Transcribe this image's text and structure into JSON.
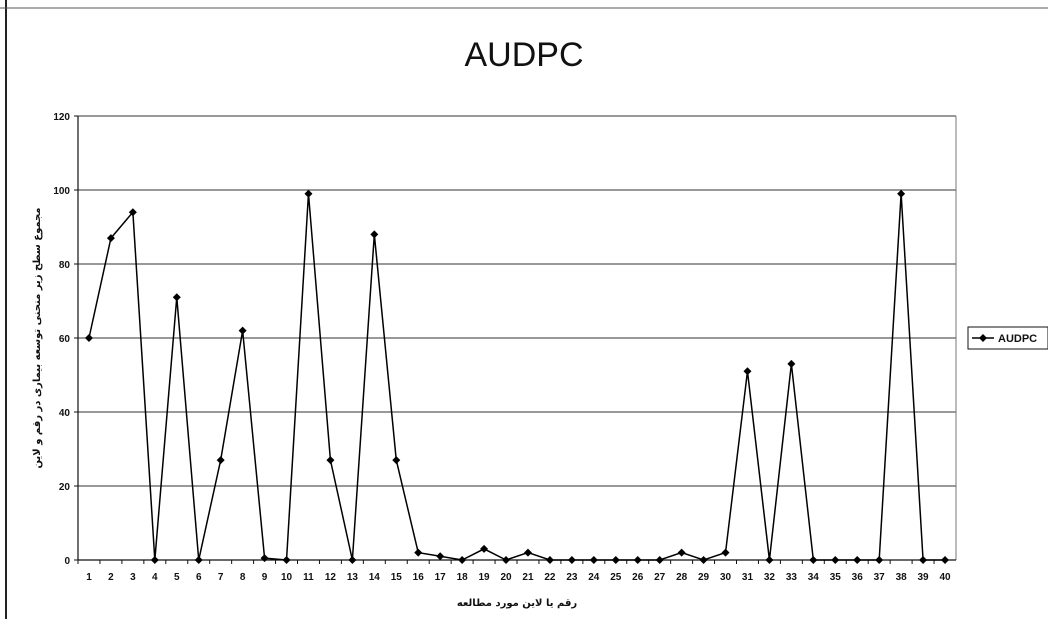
{
  "chart_data": {
    "type": "line",
    "title": "AUDPC",
    "xlabel": "رقم یا لاین مورد مطالعه",
    "ylabel": "مجموع سطح زیر منحنی توسعه بیماری در رقم و لاین",
    "categories": [
      "1",
      "2",
      "3",
      "4",
      "5",
      "6",
      "7",
      "8",
      "9",
      "10",
      "11",
      "12",
      "13",
      "14",
      "15",
      "16",
      "17",
      "18",
      "19",
      "20",
      "21",
      "22",
      "23",
      "24",
      "25",
      "26",
      "27",
      "28",
      "29",
      "30",
      "31",
      "32",
      "33",
      "34",
      "35",
      "36",
      "37",
      "38",
      "39",
      "40"
    ],
    "series": [
      {
        "name": "AUDPC",
        "values": [
          60,
          87,
          94,
          0,
          71,
          0,
          27,
          62,
          0.5,
          0,
          99,
          27,
          0,
          88,
          27,
          2,
          1,
          0,
          3,
          0,
          2,
          0,
          0,
          0,
          0,
          0,
          0,
          2,
          0,
          2,
          51,
          0,
          53,
          0,
          0,
          0,
          0,
          99,
          0,
          0
        ]
      }
    ],
    "ylim": [
      0,
      120
    ],
    "yticks": [
      0,
      20,
      40,
      60,
      80,
      100,
      120
    ],
    "grid": "horizontal",
    "legend": "right",
    "line_color": "#000000"
  }
}
